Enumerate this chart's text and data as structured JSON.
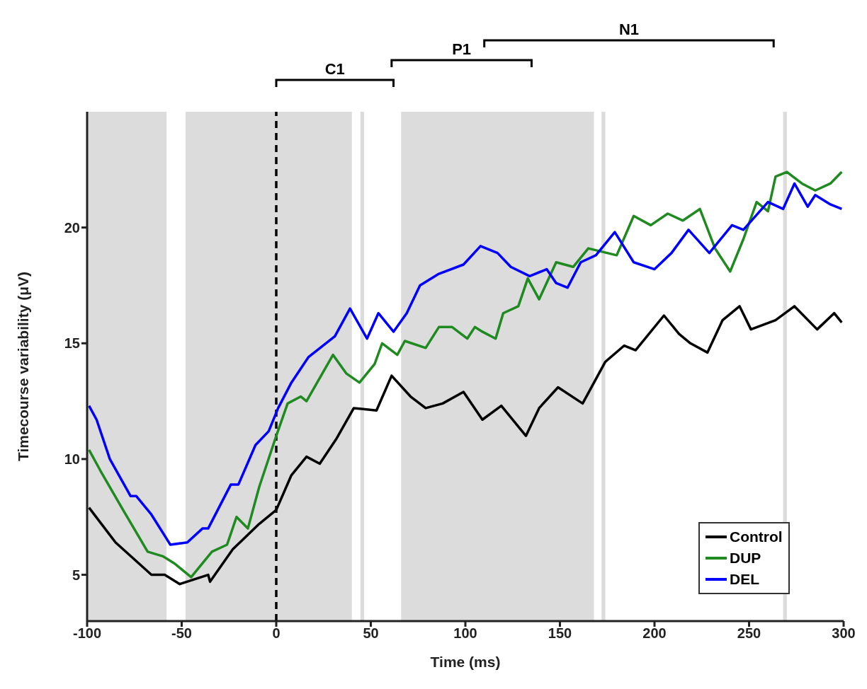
{
  "chart_data": {
    "type": "line",
    "xlabel": "Time (ms)",
    "ylabel": "Timecourse variability (μV)",
    "xlim": [
      -100,
      300
    ],
    "xticks": [
      -100,
      -50,
      0,
      50,
      100,
      150,
      200,
      250,
      300
    ],
    "ylim": [
      3,
      25
    ],
    "yticks": [
      5,
      10,
      15,
      20
    ],
    "legend": "bottom right",
    "marker": "none",
    "line_style": "solid",
    "series": [
      {
        "name": "Control",
        "color": "#000000",
        "x": [
          -99,
          -85,
          -66,
          -59,
          -51,
          -36,
          -35,
          -23,
          -9,
          0,
          8,
          16,
          23,
          32,
          41,
          53,
          61,
          71,
          79,
          88,
          99,
          109,
          119,
          132,
          139,
          149,
          162,
          174,
          184,
          190,
          205,
          213,
          219,
          228,
          236,
          245,
          251,
          264,
          274,
          286,
          295,
          299
        ],
        "values": [
          7.9,
          6.4,
          5.0,
          5.0,
          4.6,
          5.0,
          4.7,
          6.1,
          7.2,
          7.8,
          9.3,
          10.1,
          9.8,
          10.9,
          12.2,
          12.1,
          13.6,
          12.7,
          12.2,
          12.4,
          12.9,
          11.7,
          12.3,
          11.0,
          12.2,
          13.1,
          12.4,
          14.2,
          14.9,
          14.7,
          16.2,
          15.4,
          15.0,
          14.6,
          16.0,
          16.6,
          15.6,
          16.0,
          16.6,
          15.6,
          16.3,
          15.9
        ]
      },
      {
        "name": "DUP",
        "color": "#1f8a1f",
        "x": [
          -99,
          -93,
          -81,
          -68,
          -60,
          -54,
          -45,
          -34,
          -26,
          -21,
          -15,
          -9,
          0,
          6,
          13,
          16,
          30,
          37,
          44,
          52,
          56,
          64,
          68,
          79,
          86,
          93,
          101,
          105,
          109,
          116,
          120,
          128,
          133,
          139,
          148,
          157,
          165,
          180,
          189,
          198,
          207,
          215,
          224,
          232,
          240,
          247,
          254,
          260,
          264,
          270,
          278,
          285,
          293,
          299
        ],
        "values": [
          10.4,
          9.5,
          7.8,
          6.0,
          5.8,
          5.5,
          4.9,
          6.0,
          6.3,
          7.5,
          7.0,
          8.8,
          11.0,
          12.4,
          12.7,
          12.5,
          14.5,
          13.7,
          13.3,
          14.1,
          15.0,
          14.5,
          15.1,
          14.8,
          15.7,
          15.7,
          15.2,
          15.7,
          15.5,
          15.2,
          16.3,
          16.6,
          17.8,
          16.9,
          18.5,
          18.3,
          19.1,
          18.8,
          20.5,
          20.1,
          20.6,
          20.3,
          20.8,
          19.1,
          18.1,
          19.5,
          21.1,
          20.7,
          22.2,
          22.4,
          21.9,
          21.6,
          21.9,
          22.4
        ]
      },
      {
        "name": "DEL",
        "color": "#0000ff",
        "x": [
          -99,
          -95,
          -88,
          -77,
          -74,
          -66,
          -56,
          -47,
          -39,
          -36,
          -24,
          -20,
          -11,
          -4,
          1,
          8,
          17,
          31,
          39,
          48,
          54,
          62,
          69,
          76,
          86,
          99,
          108,
          117,
          124,
          134,
          143,
          148,
          154,
          161,
          169,
          179,
          189,
          200,
          209,
          218,
          229,
          241,
          247,
          260,
          268,
          274,
          281,
          285,
          293,
          299
        ],
        "values": [
          12.3,
          11.7,
          10.0,
          8.4,
          8.4,
          7.6,
          6.3,
          6.4,
          7.0,
          7.0,
          8.9,
          8.9,
          10.6,
          11.2,
          12.2,
          13.3,
          14.4,
          15.3,
          16.5,
          15.2,
          16.3,
          15.5,
          16.3,
          17.5,
          18.0,
          18.4,
          19.2,
          18.9,
          18.3,
          17.9,
          18.2,
          17.6,
          17.4,
          18.5,
          18.8,
          19.8,
          18.5,
          18.2,
          18.9,
          19.9,
          18.9,
          20.1,
          19.9,
          21.1,
          20.8,
          21.9,
          20.9,
          21.4,
          21.0,
          20.8
        ]
      }
    ],
    "ref_lines": [
      {
        "axis": "x",
        "value": 0,
        "color": "#000000",
        "line_style": "dashed"
      }
    ],
    "bands": [
      {
        "axis": "x",
        "from": -100,
        "to": -58,
        "color": "#dcdcdc"
      },
      {
        "axis": "x",
        "from": -48,
        "to": 40,
        "color": "#dcdcdc"
      },
      {
        "axis": "x",
        "from": 44.5,
        "to": 46.5,
        "color": "#dcdcdc"
      },
      {
        "axis": "x",
        "from": 66,
        "to": 168,
        "color": "#dcdcdc"
      },
      {
        "axis": "x",
        "from": 172,
        "to": 174,
        "color": "#dcdcdc"
      },
      {
        "axis": "x",
        "from": 268,
        "to": 270,
        "color": "#dcdcdc"
      }
    ],
    "annotations": [
      "C1",
      "P1",
      "N1"
    ]
  }
}
